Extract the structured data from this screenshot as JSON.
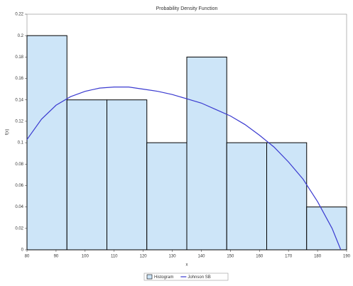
{
  "chart_data": {
    "type": "histogram",
    "title": "Probability Density Function",
    "x_label": "x",
    "y_label": "f(x)",
    "bins": [
      80,
      93.75,
      107.5,
      121.25,
      135,
      148.75,
      162.5,
      176.25,
      190
    ],
    "series": [
      {
        "name": "Histogram",
        "color": "#cde5f8",
        "values": [
          0.2,
          0.14,
          0.14,
          0.1,
          0.18,
          0.1,
          0.1,
          0.04
        ]
      },
      {
        "name": "Johnson SB",
        "type": "line",
        "color": "#3a3ad0",
        "x": [
          80,
          85,
          90,
          95,
          100,
          105,
          110,
          115,
          120,
          125,
          130,
          135,
          140,
          145,
          150,
          155,
          160,
          165,
          170,
          175,
          180,
          185,
          188
        ],
        "values": [
          0.103,
          0.122,
          0.135,
          0.143,
          0.148,
          0.151,
          0.152,
          0.152,
          0.15,
          0.148,
          0.145,
          0.141,
          0.137,
          0.131,
          0.125,
          0.117,
          0.107,
          0.096,
          0.082,
          0.066,
          0.045,
          0.02,
          0
        ]
      }
    ],
    "xlim": [
      80,
      190
    ],
    "xticks": [
      80,
      90,
      100,
      110,
      120,
      130,
      140,
      150,
      160,
      170,
      180,
      190
    ],
    "ylim": [
      0,
      0.22
    ],
    "yticks": [
      0,
      0.02,
      0.04,
      0.06,
      0.08,
      0.1,
      0.12,
      0.14,
      0.16,
      0.18,
      0.2,
      0.22
    ]
  }
}
